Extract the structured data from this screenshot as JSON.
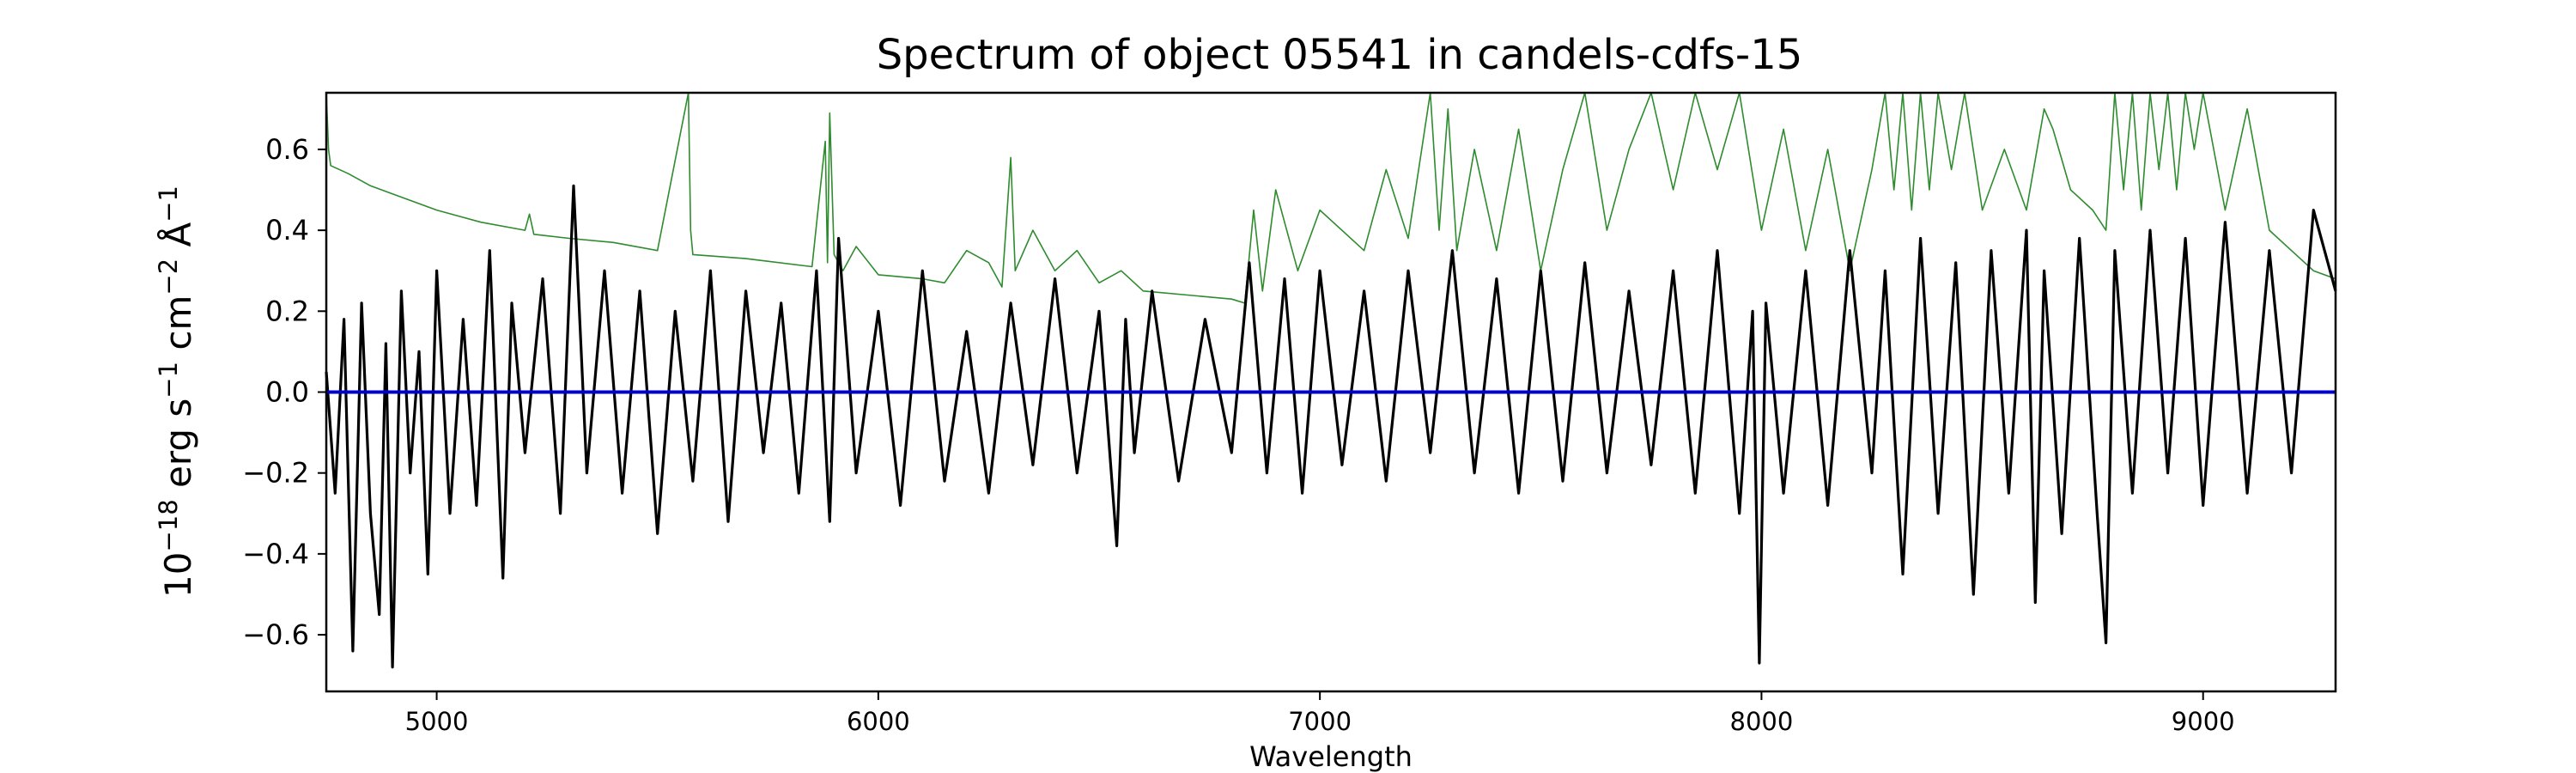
{
  "chart_data": {
    "type": "line",
    "title": "Spectrum of object 05541 in candels-cdfs-15",
    "xlabel": "Wavelength",
    "ylabel_parts": [
      "10",
      "−18",
      " erg s",
      "−1",
      " cm",
      "−2",
      " Å",
      "−1"
    ],
    "xlim": [
      4750,
      9300
    ],
    "ylim": [
      -0.74,
      0.74
    ],
    "x_ticks": [
      5000,
      6000,
      7000,
      8000,
      9000
    ],
    "x_tick_labels": [
      "5000",
      "6000",
      "7000",
      "8000",
      "9000"
    ],
    "y_ticks": [
      -0.6,
      -0.4,
      -0.2,
      0.0,
      0.2,
      0.4,
      0.6
    ],
    "y_tick_labels": [
      "−0.6",
      "−0.4",
      "−0.2",
      "0.0",
      "0.2",
      "0.4",
      "0.6"
    ],
    "grid": false,
    "colors": {
      "flux": "#000000",
      "sky": "#2e8b2e",
      "zero": "#0000cc"
    },
    "series": [
      {
        "key": "flux",
        "x": [
          4750,
          4770,
          4790,
          4810,
          4830,
          4850,
          4870,
          4885,
          4900,
          4920,
          4940,
          4960,
          4980,
          5000,
          5030,
          5060,
          5090,
          5120,
          5150,
          5170,
          5200,
          5240,
          5280,
          5310,
          5340,
          5380,
          5420,
          5460,
          5500,
          5540,
          5580,
          5620,
          5660,
          5700,
          5740,
          5780,
          5820,
          5860,
          5890,
          5910,
          5950,
          6000,
          6050,
          6100,
          6150,
          6200,
          6250,
          6300,
          6350,
          6400,
          6450,
          6500,
          6540,
          6560,
          6580,
          6620,
          6680,
          6740,
          6800,
          6840,
          6880,
          6920,
          6960,
          7000,
          7050,
          7100,
          7150,
          7200,
          7250,
          7300,
          7350,
          7400,
          7450,
          7500,
          7550,
          7600,
          7650,
          7700,
          7750,
          7800,
          7850,
          7900,
          7950,
          7980,
          7995,
          8010,
          8050,
          8100,
          8150,
          8200,
          8250,
          8280,
          8320,
          8360,
          8400,
          8440,
          8480,
          8520,
          8560,
          8600,
          8620,
          8640,
          8680,
          8720,
          8760,
          8780,
          8800,
          8840,
          8880,
          8920,
          8960,
          9000,
          9050,
          9100,
          9150,
          9200,
          9250,
          9300
        ],
        "y": [
          0.05,
          -0.25,
          0.18,
          -0.64,
          0.22,
          -0.3,
          -0.55,
          0.12,
          -0.68,
          0.25,
          -0.2,
          0.1,
          -0.45,
          0.3,
          -0.3,
          0.18,
          -0.28,
          0.35,
          -0.46,
          0.22,
          -0.15,
          0.28,
          -0.3,
          0.51,
          -0.2,
          0.3,
          -0.25,
          0.25,
          -0.35,
          0.2,
          -0.22,
          0.3,
          -0.32,
          0.25,
          -0.15,
          0.22,
          -0.25,
          0.3,
          -0.32,
          0.38,
          -0.2,
          0.2,
          -0.28,
          0.3,
          -0.22,
          0.15,
          -0.25,
          0.22,
          -0.18,
          0.28,
          -0.2,
          0.2,
          -0.38,
          0.18,
          -0.15,
          0.25,
          -0.22,
          0.18,
          -0.15,
          0.32,
          -0.2,
          0.28,
          -0.25,
          0.3,
          -0.18,
          0.25,
          -0.22,
          0.3,
          -0.15,
          0.35,
          -0.2,
          0.28,
          -0.25,
          0.3,
          -0.22,
          0.32,
          -0.2,
          0.25,
          -0.18,
          0.3,
          -0.25,
          0.35,
          -0.3,
          0.2,
          -0.67,
          0.22,
          -0.25,
          0.3,
          -0.28,
          0.35,
          -0.2,
          0.3,
          -0.45,
          0.38,
          -0.3,
          0.32,
          -0.5,
          0.35,
          -0.25,
          0.4,
          -0.52,
          0.3,
          -0.35,
          0.38,
          -0.3,
          -0.62,
          0.35,
          -0.25,
          0.4,
          -0.2,
          0.38,
          -0.28,
          0.42,
          -0.25,
          0.35,
          -0.2,
          0.45,
          0.25
        ]
      },
      {
        "key": "sky",
        "x": [
          4750,
          4755,
          4760,
          4800,
          4850,
          4900,
          5000,
          5100,
          5200,
          5210,
          5220,
          5300,
          5400,
          5500,
          5570,
          5575,
          5580,
          5700,
          5850,
          5880,
          5885,
          5890,
          5900,
          5920,
          5950,
          6000,
          6100,
          6150,
          6200,
          6250,
          6280,
          6300,
          6310,
          6350,
          6400,
          6450,
          6500,
          6550,
          6600,
          6700,
          6800,
          6830,
          6850,
          6870,
          6900,
          6950,
          7000,
          7100,
          7150,
          7200,
          7250,
          7270,
          7290,
          7310,
          7350,
          7400,
          7450,
          7500,
          7550,
          7600,
          7650,
          7700,
          7750,
          7800,
          7850,
          7900,
          7950,
          8000,
          8050,
          8100,
          8150,
          8200,
          8250,
          8280,
          8300,
          8320,
          8340,
          8360,
          8380,
          8400,
          8430,
          8460,
          8500,
          8550,
          8600,
          8640,
          8660,
          8700,
          8750,
          8780,
          8800,
          8820,
          8840,
          8860,
          8880,
          8900,
          8920,
          8940,
          8960,
          8980,
          9000,
          9050,
          9100,
          9150,
          9200,
          9250,
          9300
        ],
        "y": [
          0.74,
          0.6,
          0.56,
          0.54,
          0.51,
          0.49,
          0.45,
          0.42,
          0.4,
          0.44,
          0.39,
          0.38,
          0.37,
          0.35,
          0.74,
          0.4,
          0.34,
          0.33,
          0.31,
          0.62,
          0.32,
          0.69,
          0.34,
          0.3,
          0.36,
          0.29,
          0.28,
          0.27,
          0.35,
          0.32,
          0.26,
          0.58,
          0.3,
          0.4,
          0.3,
          0.35,
          0.27,
          0.3,
          0.25,
          0.24,
          0.23,
          0.22,
          0.45,
          0.25,
          0.5,
          0.3,
          0.45,
          0.35,
          0.55,
          0.38,
          0.74,
          0.4,
          0.7,
          0.35,
          0.6,
          0.35,
          0.65,
          0.3,
          0.55,
          0.74,
          0.4,
          0.6,
          0.74,
          0.5,
          0.74,
          0.55,
          0.74,
          0.4,
          0.65,
          0.35,
          0.6,
          0.3,
          0.55,
          0.74,
          0.5,
          0.74,
          0.45,
          0.74,
          0.5,
          0.74,
          0.55,
          0.74,
          0.45,
          0.6,
          0.45,
          0.7,
          0.65,
          0.5,
          0.45,
          0.4,
          0.74,
          0.5,
          0.74,
          0.45,
          0.74,
          0.55,
          0.74,
          0.5,
          0.74,
          0.6,
          0.74,
          0.45,
          0.7,
          0.4,
          0.35,
          0.3,
          0.28
        ]
      },
      {
        "key": "zero",
        "x": [
          4750,
          9300
        ],
        "y": [
          0.0,
          0.0
        ]
      }
    ]
  }
}
